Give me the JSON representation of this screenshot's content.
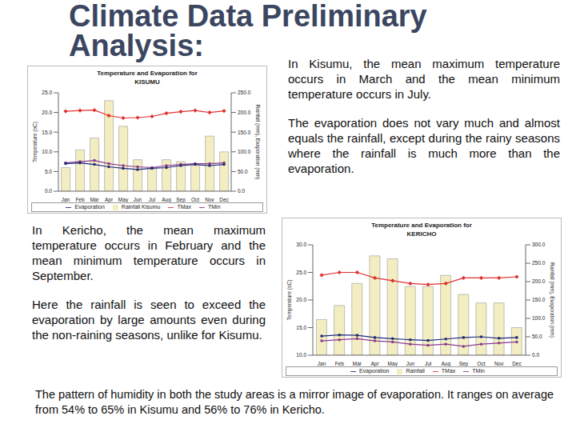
{
  "title": "Climate Data Preliminary Analysis:",
  "texts": [
    "In Kisumu, the mean maximum temperature occurs in March and the mean minimum temperature occurs in July.",
    "The evaporation does not vary much and almost equals the rainfall, except during the rainy seasons where the rainfall is much more than the evaporation.",
    "In Kericho, the mean maximum temperature occurs in February and the mean minimum temperature occurs in September.",
    "Here the rainfall is seen to exceed the evaporation by large amounts even during the non-raining seasons, unlike for Kisumu.",
    "The pattern of humidity in both the study areas is a mirror image of evaporation. It ranges on average from 54% to 65% in Kisumu and 56% to 76% in Kericho."
  ],
  "chart_data": [
    {
      "type": "bar",
      "title": "Temperature and Evaporation for KISUMU",
      "y_label": "Temperature (oC)",
      "y2_label": "Rainfall (mm), Evaporation (mm)",
      "categories": [
        "Jan",
        "Feb",
        "Mar",
        "Apr",
        "May",
        "Jun",
        "Jul",
        "Aug",
        "Sep",
        "Oct",
        "Nov",
        "Dec"
      ],
      "series": [
        {
          "name": "Rainfall Kisumu",
          "type": "bar",
          "axis": "y2",
          "color": "#f3edc2",
          "values": [
            60,
            105,
            135,
            230,
            165,
            80,
            60,
            80,
            75,
            70,
            140,
            100
          ]
        },
        {
          "name": "TMax",
          "type": "line",
          "marker": "diamond",
          "color": "#e03030",
          "values": [
            20.3,
            20.5,
            20.6,
            19.2,
            18.6,
            18.7,
            19.0,
            19.8,
            20.2,
            20.5,
            20.0,
            20.4
          ]
        },
        {
          "name": "TMin",
          "type": "line",
          "marker": "circle",
          "color": "#8b3a8f",
          "values": [
            7.2,
            7.5,
            7.8,
            7.0,
            6.5,
            6.2,
            6.0,
            6.5,
            6.8,
            7.0,
            7.0,
            7.2
          ]
        },
        {
          "name": "Evaporation",
          "type": "line",
          "marker": "circle",
          "axis": "y2",
          "color": "#1f2a7a",
          "values": [
            70,
            72,
            68,
            62,
            58,
            55,
            58,
            60,
            65,
            68,
            65,
            68
          ]
        }
      ],
      "ylim": [
        0,
        25
      ],
      "yticks": [
        {
          "value": 0,
          "label": "0.0"
        },
        {
          "value": 5,
          "label": "5.0"
        },
        {
          "value": 10,
          "label": "10.0"
        },
        {
          "value": 15,
          "label": "15.0"
        },
        {
          "value": 20,
          "label": "20.0"
        },
        {
          "value": 25,
          "label": "25.0"
        }
      ],
      "y2lim": [
        0,
        250
      ],
      "y2ticks": [
        {
          "value": 0,
          "label": "0.0"
        },
        {
          "value": 50,
          "label": "50.0"
        },
        {
          "value": 100,
          "label": "100.0"
        },
        {
          "value": 150,
          "label": "150.0"
        },
        {
          "value": 200,
          "label": "200.0"
        },
        {
          "value": 250,
          "label": "250.0"
        }
      ],
      "legend": "bottom",
      "grid": false
    },
    {
      "type": "bar",
      "title": "Temperature and Evaporation for KERICHO",
      "y_label": "Temperature (oC)",
      "y2_label": "Rainfall (mm), Evaporation (mm)",
      "categories": [
        "Jan",
        "Feb",
        "Mar",
        "Apr",
        "May",
        "Jun",
        "Jul",
        "Aug",
        "Sep",
        "Oct",
        "Nov",
        "Dec"
      ],
      "series": [
        {
          "name": "Rainfall",
          "type": "bar",
          "axis": "y2",
          "color": "#f3edc2",
          "values": [
            97,
            135,
            195,
            270,
            262,
            187,
            187,
            217,
            165,
            142,
            142,
            75
          ]
        },
        {
          "name": "TMax",
          "type": "line",
          "marker": "diamond",
          "color": "#e03030",
          "values": [
            24.5,
            25.0,
            25.0,
            24.0,
            23.5,
            23.0,
            22.8,
            23.0,
            24.0,
            24.0,
            24.0,
            24.2
          ]
        },
        {
          "name": "TMin",
          "type": "line",
          "marker": "circle",
          "color": "#8b3a8f",
          "values": [
            12.6,
            12.8,
            13.0,
            12.6,
            12.4,
            12.0,
            11.8,
            12.0,
            11.6,
            12.0,
            12.2,
            12.4
          ]
        },
        {
          "name": "Evaporation",
          "type": "line",
          "marker": "circle",
          "axis": "y2",
          "color": "#1f2a7a",
          "values": [
            52,
            55,
            54,
            48,
            45,
            42,
            40,
            44,
            48,
            50,
            46,
            48
          ]
        }
      ],
      "ylim": [
        10,
        30
      ],
      "yticks": [
        {
          "value": 10,
          "label": "10.0"
        },
        {
          "value": 15,
          "label": "15.0"
        },
        {
          "value": 20,
          "label": "20.0"
        },
        {
          "value": 25,
          "label": "25.0"
        },
        {
          "value": 30,
          "label": "30.0"
        }
      ],
      "y2lim": [
        0,
        300
      ],
      "y2ticks": [
        {
          "value": 0,
          "label": "0.0"
        },
        {
          "value": 50,
          "label": "50.0"
        },
        {
          "value": 100,
          "label": "100.0"
        },
        {
          "value": 150,
          "label": "150.0"
        },
        {
          "value": 200,
          "label": "200.0"
        },
        {
          "value": 250,
          "label": "250.0"
        },
        {
          "value": 300,
          "label": "300.0"
        }
      ],
      "legend": "bottom",
      "grid": false
    }
  ]
}
